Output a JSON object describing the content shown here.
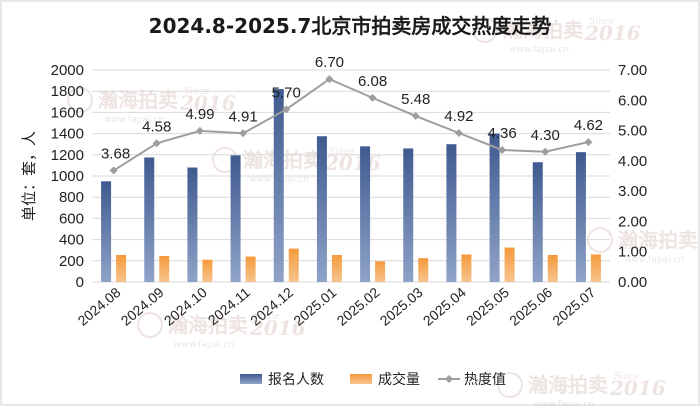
{
  "chart_data": {
    "type": "bar",
    "title": "2024.8-2025.7北京市拍卖房成交热度走势",
    "ylabel": "单位：套，人",
    "categories": [
      "2024.08",
      "2024.09",
      "2024.10",
      "2024.11",
      "2024.12",
      "2025.01",
      "2025.02",
      "2025.03",
      "2025.04",
      "2025.05",
      "2025.06",
      "2025.07"
    ],
    "y_left_lim": [
      0,
      2000
    ],
    "y_left_ticks": [
      "0",
      "200",
      "400",
      "600",
      "800",
      "1000",
      "1200",
      "1400",
      "1600",
      "1800",
      "2000"
    ],
    "y_right_lim": [
      0,
      7
    ],
    "y_right_ticks": [
      "0.00",
      "1.00",
      "2.00",
      "3.00",
      "4.00",
      "5.00",
      "6.00",
      "7.00"
    ],
    "grid": true,
    "legend_position": "bottom",
    "series": [
      {
        "name": "报名人数",
        "type": "bar",
        "axis": "left",
        "color": "#4d6799",
        "values": [
          950,
          1175,
          1080,
          1195,
          1820,
          1375,
          1280,
          1260,
          1300,
          1400,
          1130,
          1225
        ]
      },
      {
        "name": "成交量",
        "type": "bar",
        "axis": "left",
        "color": "#f0892e",
        "values": [
          255,
          245,
          210,
          240,
          315,
          255,
          195,
          225,
          260,
          325,
          255,
          260
        ]
      },
      {
        "name": "热度值",
        "type": "line",
        "axis": "right",
        "color": "#9e9e9e",
        "values": [
          3.68,
          4.58,
          4.99,
          4.91,
          5.7,
          6.7,
          6.08,
          5.48,
          4.92,
          4.36,
          4.3,
          4.62
        ],
        "labels": [
          "3.68",
          "4.58",
          "4.99",
          "4.91",
          "5.70",
          "6.70",
          "6.08",
          "5.48",
          "4.92",
          "4.36",
          "4.30",
          "4.62"
        ]
      }
    ]
  },
  "watermark": {
    "brand": "瀚海拍卖",
    "since": "Since",
    "year": "2016",
    "url": "www.fapai.cn"
  }
}
